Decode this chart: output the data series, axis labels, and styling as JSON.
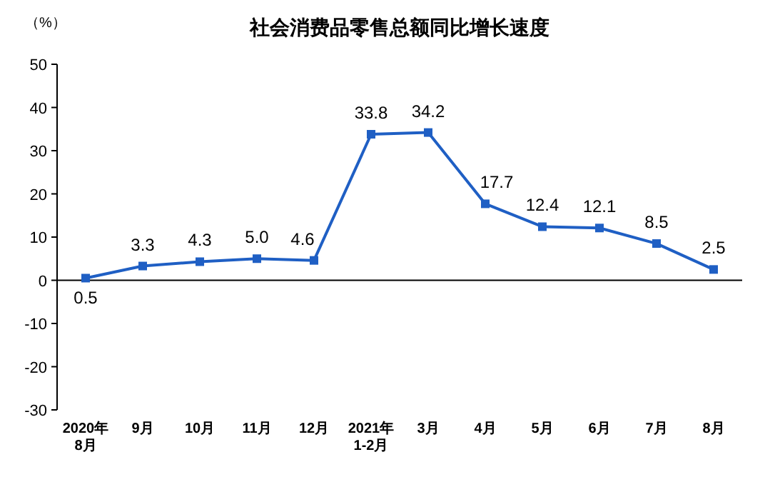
{
  "chart_data": {
    "type": "line",
    "title": "社会消费品零售总额同比增长速度",
    "ylabel": "（%）",
    "categories": [
      "2020年\n8月",
      "9月",
      "10月",
      "11月",
      "12月",
      "2021年\n1-2月",
      "3月",
      "4月",
      "5月",
      "6月",
      "7月",
      "8月"
    ],
    "series": [
      {
        "color": "#1f5fc4",
        "values": [
          0.5,
          3.3,
          4.3,
          5.0,
          4.6,
          33.8,
          34.2,
          17.7,
          12.4,
          12.1,
          8.5,
          2.5
        ],
        "value_labels": [
          "0.5",
          "3.3",
          "4.3",
          "5.0",
          "4.6",
          "33.8",
          "34.2",
          "17.7",
          "12.4",
          "12.1",
          "8.5",
          "2.5"
        ]
      }
    ],
    "ylim": [
      -30,
      50
    ],
    "yticks": [
      -30,
      -20,
      -10,
      0,
      10,
      20,
      30,
      40,
      50
    ],
    "marker": "square"
  }
}
